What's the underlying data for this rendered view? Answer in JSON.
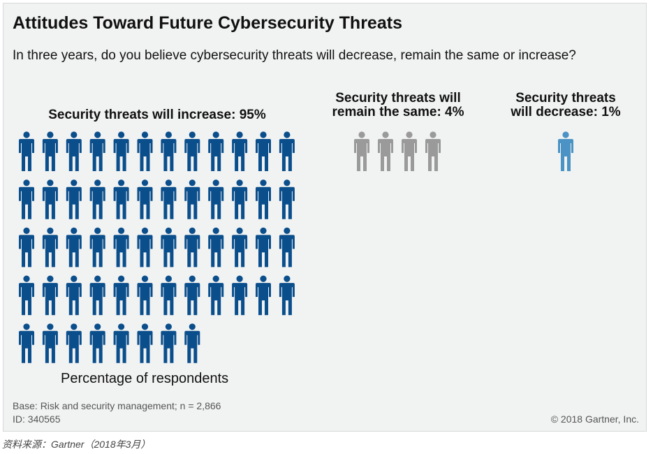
{
  "title": "Attitudes Toward Future Cybersecurity Threats",
  "subtitle": "In three years, do you believe cybersecurity threats will decrease, remain the same or increase?",
  "groups": [
    {
      "label": "Security threats will increase: 95%",
      "value": 95
    },
    {
      "label_line1": "Security threats will",
      "label_line2": "remain the same: 4%",
      "value": 4
    },
    {
      "label_line1": "Security threats",
      "label_line2": "will decrease: 1%",
      "value": 1
    }
  ],
  "colors": {
    "increase": "#0a4e8c",
    "same": "#9a9a9a",
    "decrease": "#4a93c4"
  },
  "chart_data": {
    "type": "pictograph",
    "title": "Attitudes Toward Future Cybersecurity Threats",
    "categories": [
      "Security threats will increase",
      "Security threats will remain the same",
      "Security threats will decrease"
    ],
    "values": [
      95,
      4,
      1
    ],
    "unit": "Percentage of respondents",
    "icons_shown": [
      56,
      4,
      1
    ]
  },
  "axis_label": "Percentage of respondents",
  "footer": {
    "base": "Base: Risk and security management; n = 2,866",
    "id": "ID: 340565",
    "copyright": "© 2018 Gartner, Inc."
  },
  "source": "资料来源：Gartner（2018年3月）"
}
